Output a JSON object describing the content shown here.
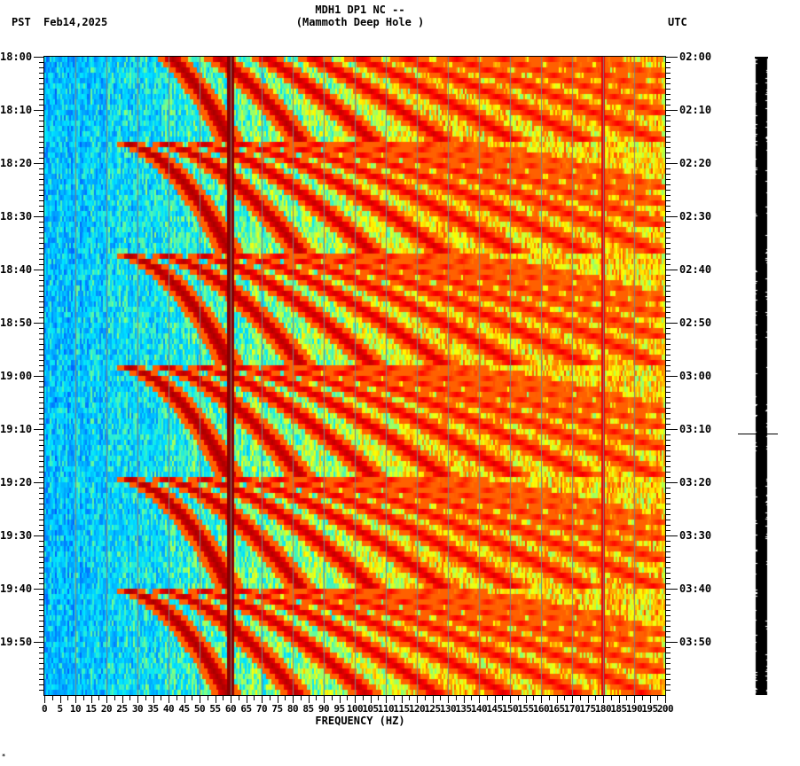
{
  "header": {
    "title_line1": "MDH1 DP1 NC --",
    "title_line2": "(Mammoth Deep Hole )",
    "left_timezone": "PST",
    "date": "Feb14,2025",
    "right_timezone": "UTC"
  },
  "footer": {
    "corner_mark": "*"
  },
  "chart_data": {
    "type": "heatmap",
    "title": "MDH1 DP1 NC -- (Mammoth Deep Hole )",
    "subtitle": "PST Feb14,2025",
    "xlabel": "FREQUENCY (HZ)",
    "ylabel_left": "PST",
    "ylabel_right": "UTC",
    "xlim": [
      0,
      200
    ],
    "x_ticks": [
      "0",
      "5",
      "10",
      "15",
      "20",
      "25",
      "30",
      "35",
      "40",
      "45",
      "50",
      "55",
      "60",
      "65",
      "70",
      "75",
      "80",
      "85",
      "90",
      "95",
      "100",
      "105",
      "110",
      "115",
      "120",
      "125",
      "130",
      "135",
      "140",
      "145",
      "150",
      "155",
      "160",
      "165",
      "170",
      "175",
      "180",
      "185",
      "190",
      "195",
      "200"
    ],
    "x_gridlines_hz": [
      10,
      20,
      30,
      40,
      50,
      60,
      70,
      80,
      90,
      100,
      110,
      120,
      130,
      140,
      150,
      160,
      170,
      180,
      190
    ],
    "y_ticks_left": [
      "18:00",
      "18:10",
      "18:20",
      "18:30",
      "18:40",
      "18:50",
      "19:00",
      "19:10",
      "19:20",
      "19:30",
      "19:40",
      "19:50"
    ],
    "y_ticks_right": [
      "02:00",
      "02:10",
      "02:20",
      "02:30",
      "02:40",
      "02:50",
      "03:00",
      "03:10",
      "03:20",
      "03:30",
      "03:40",
      "03:50"
    ],
    "duration_minutes": 120,
    "colormap": [
      "#0050ff",
      "#00a0ff",
      "#00e5ff",
      "#80ff80",
      "#ffff00",
      "#ff8000",
      "#ff0000",
      "#800000"
    ],
    "features": {
      "constant_line_hz": 60,
      "weak_line_hz": 180,
      "sweep_period_minutes": 21,
      "sweep_start_minutes": [
        -5,
        16,
        37,
        58,
        79,
        100
      ],
      "sweep_harmonics": 10,
      "sweep_fundamental_start_hz": 22,
      "sweep_fundamental_end_hz": 60,
      "broadband_event_minute": 71,
      "broadband_event_max_hz": 30,
      "noise_floor_low_hz": "blue",
      "noise_floor_high_hz": "yellow-green"
    },
    "seismogram_marker_minute": 71
  }
}
